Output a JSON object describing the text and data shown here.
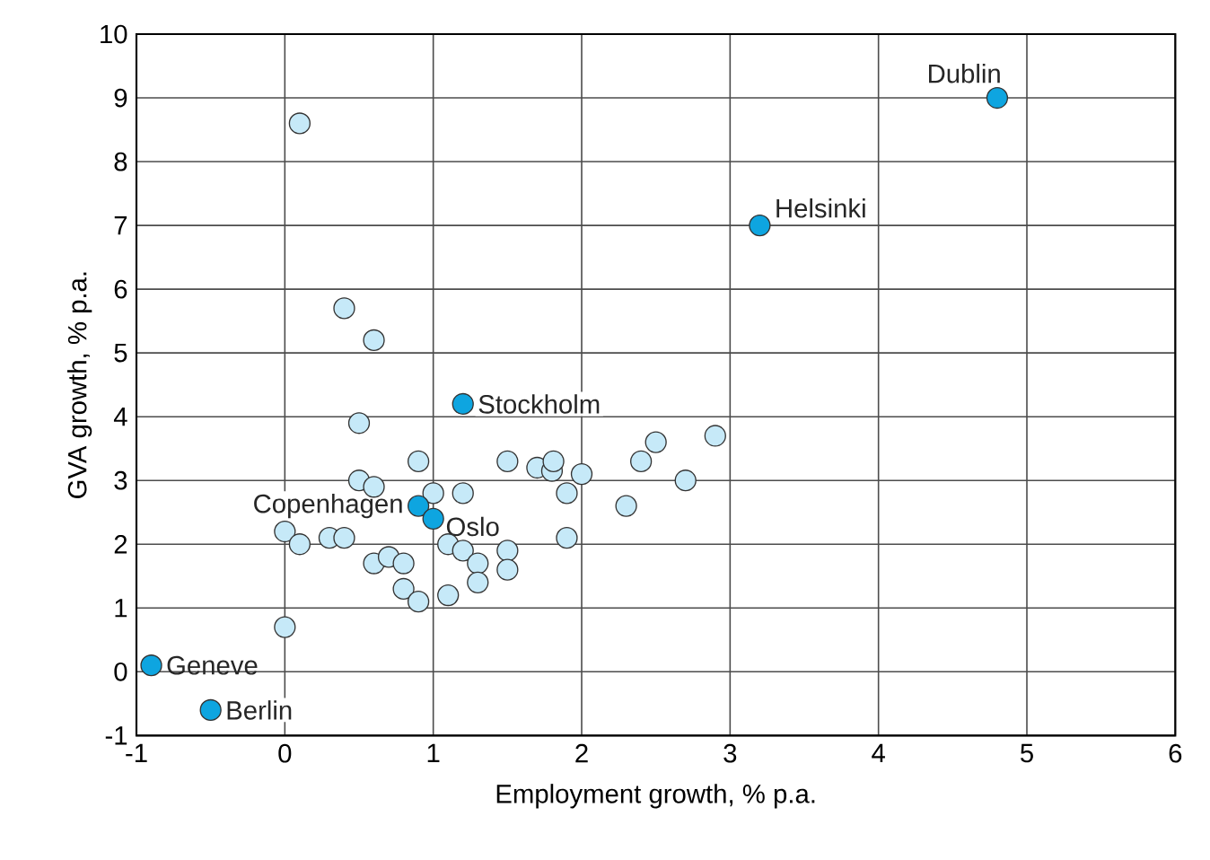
{
  "chart_data": {
    "type": "scatter",
    "xlabel": "Employment growth, % p.a.",
    "ylabel": "GVA growth, % p.a.",
    "xlim": [
      -1,
      6
    ],
    "xticks": [
      -1,
      0,
      1,
      2,
      3,
      4,
      5,
      6
    ],
    "ylim": [
      -1,
      10
    ],
    "yticks": [
      -1,
      0,
      1,
      2,
      3,
      4,
      5,
      6,
      7,
      8,
      9,
      10
    ],
    "grid": true,
    "marker": "circle",
    "series": [
      {
        "color": "#c6e9f8",
        "x": [
          0.1,
          0.4,
          0.6,
          0.5,
          0.9,
          0.5,
          0.6,
          1.0,
          1.2,
          0,
          0.1,
          0.3,
          0.4,
          0.6,
          0.7,
          0.8,
          0.8,
          0.9,
          1.1,
          1.2,
          1.3,
          1.3,
          1.1,
          1.5,
          1.5,
          1.5,
          1.7,
          1.8,
          1.81,
          2.0,
          1.9,
          1.9,
          2.3,
          2.4,
          2.5,
          2.7,
          2.9,
          0
        ],
        "values": [
          8.6,
          5.7,
          5.2,
          3.9,
          3.3,
          3.0,
          2.9,
          2.8,
          2.8,
          2.2,
          2.0,
          2.1,
          2.1,
          1.7,
          1.8,
          1.7,
          1.3,
          1.1,
          2.0,
          1.9,
          1.7,
          1.4,
          1.2,
          1.9,
          1.6,
          3.3,
          3.2,
          3.15,
          3.3,
          3.1,
          2.8,
          2.1,
          2.6,
          3.3,
          3.6,
          3.0,
          3.7,
          0.7
        ]
      },
      {
        "color": "#0ea5e0",
        "x": [
          4.8,
          3.2,
          1.2,
          0.9,
          1.0,
          -0.9,
          -0.5
        ],
        "values": [
          9.0,
          7.0,
          4.2,
          2.6,
          2.4,
          0.1,
          -0.6
        ]
      }
    ],
    "annotations": [
      {
        "text": "Dublin",
        "x": 4.8,
        "y": 9.0
      },
      {
        "text": "Helsinki",
        "x": 3.2,
        "y": 7.0
      },
      {
        "text": "Stockholm",
        "x": 1.2,
        "y": 4.2
      },
      {
        "text": "Copenhagen",
        "x": 0.9,
        "y": 2.6
      },
      {
        "text": "Oslo",
        "x": 1.0,
        "y": 2.4
      },
      {
        "text": "Geneve",
        "x": -0.9,
        "y": 0.1
      },
      {
        "text": "Berlin",
        "x": -0.5,
        "y": -0.6
      }
    ]
  }
}
